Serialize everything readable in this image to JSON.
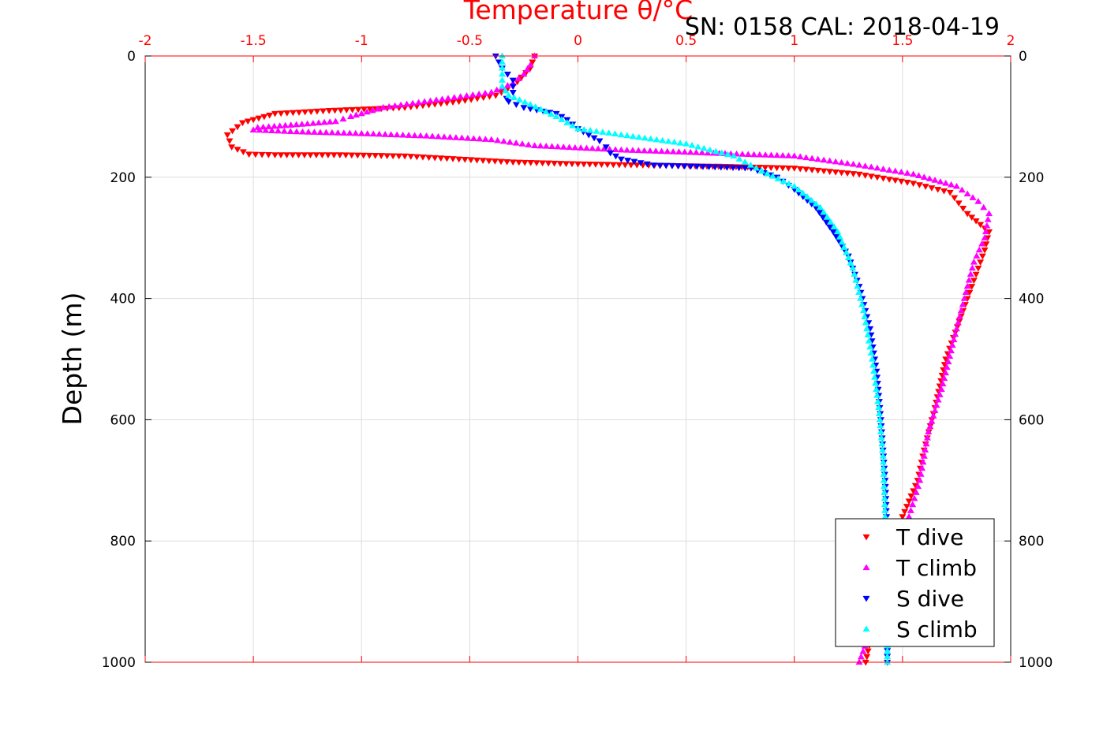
{
  "chart_data": {
    "type": "scatter",
    "title": "SN: 0158  CAL: 2018-04-19",
    "xlabel": "Temperature θ/°C",
    "ylabel": "Depth (m)",
    "xlim": [
      -2,
      2
    ],
    "ylim": [
      0,
      1000
    ],
    "y_reversed": true,
    "grid": true,
    "legend_position": "bottom-right",
    "x_ticks": [
      "-2",
      "-1.5",
      "-1",
      "-0.5",
      "0",
      "0.5",
      "1",
      "1.5",
      "2"
    ],
    "y_ticks": [
      "0",
      "200",
      "400",
      "600",
      "800",
      "1000"
    ],
    "colors": {
      "top_axis": "#ff0000",
      "text": "#000000",
      "grid": "#dddddd"
    },
    "series": [
      {
        "name": "T dive",
        "color": "#ff0000",
        "marker": "triangle-down",
        "x": [
          -0.2,
          -0.22,
          -0.26,
          -0.3,
          -0.38,
          -0.55,
          -0.8,
          -1.15,
          -1.4,
          -1.55,
          -1.62,
          -1.6,
          -1.52,
          -1.4,
          -1.1,
          -0.8,
          -0.55,
          -0.3,
          0.0,
          0.3,
          0.65,
          1.0,
          1.3,
          1.55,
          1.72,
          1.8,
          1.9,
          1.88,
          1.85,
          1.82,
          1.78,
          1.7,
          1.65,
          1.6,
          1.57,
          1.5,
          1.4,
          1.33
        ],
        "y": [
          0,
          20,
          35,
          50,
          65,
          75,
          85,
          90,
          95,
          110,
          130,
          150,
          162,
          163,
          163,
          165,
          170,
          175,
          178,
          180,
          182,
          185,
          195,
          210,
          225,
          260,
          290,
          320,
          350,
          380,
          420,
          500,
          580,
          650,
          700,
          760,
          880,
          1000
        ]
      },
      {
        "name": "T climb",
        "color": "#ff00ff",
        "marker": "triangle-up",
        "x": [
          -0.2,
          -0.22,
          -0.25,
          -0.3,
          -0.4,
          -0.6,
          -0.9,
          -1.05,
          -1.12,
          -1.25,
          -1.48,
          -1.5,
          -1.3,
          -1.0,
          -0.7,
          -0.4,
          -0.2,
          0.2,
          0.6,
          1.0,
          1.3,
          1.55,
          1.75,
          1.85,
          1.9,
          1.88,
          1.83,
          1.8,
          1.75,
          1.68,
          1.62,
          1.58,
          1.53,
          1.45,
          1.3
        ],
        "y": [
          0,
          15,
          30,
          45,
          60,
          70,
          85,
          100,
          108,
          112,
          118,
          122,
          125,
          128,
          132,
          138,
          148,
          155,
          160,
          165,
          180,
          195,
          215,
          240,
          260,
          300,
          340,
          380,
          450,
          550,
          620,
          700,
          760,
          850,
          1000
        ]
      },
      {
        "name": "S dive",
        "color": "#0000ff",
        "marker": "triangle-down",
        "x": [
          -0.38,
          -0.35,
          -0.3,
          -0.3,
          -0.33,
          -0.32,
          -0.25,
          -0.1,
          -0.05,
          0.0,
          0.1,
          0.13,
          0.15,
          0.2,
          0.35,
          0.55,
          0.8,
          0.92,
          1.0,
          1.1,
          1.18,
          1.25,
          1.3,
          1.35,
          1.38,
          1.4,
          1.41,
          1.42,
          1.43,
          1.43
        ],
        "y": [
          0,
          20,
          40,
          60,
          70,
          75,
          85,
          95,
          105,
          120,
          140,
          150,
          160,
          170,
          180,
          182,
          185,
          200,
          220,
          250,
          290,
          330,
          380,
          450,
          520,
          600,
          650,
          700,
          800,
          1000
        ]
      },
      {
        "name": "S climb",
        "color": "#00ffff",
        "marker": "triangle-up",
        "x": [
          -0.35,
          -0.35,
          -0.35,
          -0.32,
          -0.22,
          -0.1,
          0.0,
          0.2,
          0.5,
          0.72,
          0.85,
          1.0,
          1.12,
          1.2,
          1.27,
          1.32,
          1.36,
          1.39,
          1.41,
          1.42,
          1.43,
          1.43
        ],
        "y": [
          0,
          30,
          50,
          65,
          80,
          100,
          120,
          130,
          145,
          165,
          190,
          215,
          250,
          290,
          350,
          420,
          500,
          580,
          660,
          760,
          880,
          1000
        ]
      }
    ]
  }
}
